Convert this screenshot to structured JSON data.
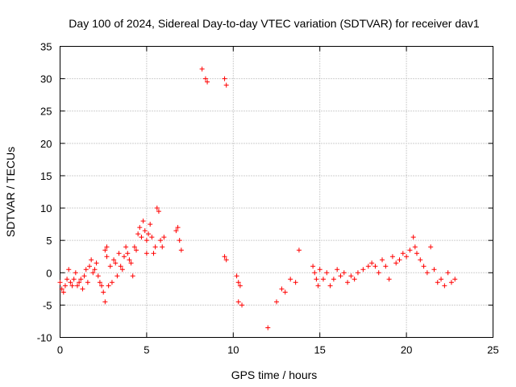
{
  "chart_data": {
    "type": "scatter",
    "title": "Day 100 of 2024, Sidereal Day-to-day VTEC variation (SDTVAR) for receiver dav1",
    "xlabel": "GPS time / hours",
    "ylabel": "SDTVAR / TECUs",
    "xlim": [
      0,
      25
    ],
    "ylim": [
      -10,
      35
    ],
    "xticks": [
      0,
      5,
      10,
      15,
      20,
      25
    ],
    "yticks": [
      -10,
      -5,
      0,
      5,
      10,
      15,
      20,
      25,
      30,
      35
    ],
    "grid": true,
    "marker": "+",
    "color": "#ff0000",
    "series": [
      {
        "name": "SDTVAR",
        "x": [
          0.0,
          0.1,
          0.2,
          0.3,
          0.4,
          0.5,
          0.6,
          0.7,
          0.8,
          0.9,
          1.0,
          1.1,
          1.2,
          1.3,
          1.4,
          1.5,
          1.6,
          1.7,
          1.8,
          1.9,
          2.0,
          2.1,
          2.2,
          2.3,
          2.4,
          2.5,
          2.6,
          2.6,
          2.7,
          2.7,
          2.8,
          2.9,
          3.0,
          3.1,
          3.2,
          3.3,
          3.4,
          3.5,
          3.6,
          3.7,
          3.8,
          3.9,
          4.0,
          4.1,
          4.2,
          4.3,
          4.4,
          4.5,
          4.6,
          4.7,
          4.8,
          4.9,
          5.0,
          5.0,
          5.1,
          5.2,
          5.3,
          5.4,
          5.5,
          5.6,
          5.7,
          5.8,
          5.9,
          6.0,
          6.7,
          6.8,
          6.9,
          7.0,
          8.2,
          8.4,
          8.5,
          9.5,
          9.6,
          9.5,
          9.6,
          10.2,
          10.3,
          10.4,
          10.3,
          10.5,
          12.0,
          12.5,
          12.8,
          13.0,
          13.3,
          13.6,
          13.8,
          14.6,
          14.7,
          14.8,
          14.9,
          15.0,
          15.2,
          15.4,
          15.6,
          15.8,
          16.0,
          16.2,
          16.4,
          16.6,
          16.8,
          17.0,
          17.2,
          17.5,
          17.8,
          18.0,
          18.2,
          18.4,
          18.6,
          18.8,
          19.0,
          19.2,
          19.4,
          19.6,
          19.8,
          20.0,
          20.2,
          20.4,
          20.5,
          20.6,
          20.8,
          21.0,
          21.2,
          21.4,
          21.6,
          21.8,
          22.0,
          22.2,
          22.4,
          22.6,
          22.8
        ],
        "y": [
          -1.5,
          -2.5,
          -3.0,
          -2.0,
          -1.0,
          0.5,
          -1.5,
          -2.0,
          -1.0,
          0.0,
          -2.0,
          -1.5,
          -1.0,
          -2.5,
          -0.5,
          0.5,
          -1.5,
          1.0,
          2.0,
          0.0,
          0.5,
          1.5,
          -0.5,
          -1.5,
          -2.0,
          -3.0,
          -4.5,
          3.5,
          4.0,
          2.5,
          -2.0,
          1.0,
          -1.5,
          2.0,
          1.5,
          -0.5,
          3.0,
          1.0,
          0.5,
          2.5,
          4.0,
          3.0,
          2.0,
          1.5,
          -0.5,
          4.0,
          3.5,
          6.0,
          7.0,
          5.5,
          8.0,
          6.5,
          5.0,
          3.0,
          6.0,
          7.5,
          5.5,
          3.0,
          4.0,
          10.0,
          9.5,
          5.0,
          4.0,
          5.5,
          6.5,
          7.0,
          5.0,
          3.5,
          31.5,
          30.0,
          29.5,
          30.0,
          29.0,
          2.5,
          2.0,
          -0.5,
          -1.5,
          -2.0,
          -4.5,
          -5.0,
          -8.5,
          -4.5,
          -2.5,
          -3.0,
          -1.0,
          -1.5,
          3.5,
          1.0,
          0.0,
          -1.0,
          -2.0,
          0.5,
          -1.0,
          0.0,
          -2.0,
          -1.0,
          0.5,
          -0.5,
          0.0,
          -1.5,
          -0.5,
          -1.0,
          0.0,
          0.5,
          1.0,
          1.5,
          1.0,
          0.0,
          2.0,
          1.0,
          -1.0,
          2.5,
          1.5,
          2.0,
          3.0,
          2.5,
          3.5,
          5.5,
          4.0,
          3.0,
          2.0,
          1.0,
          0.0,
          4.0,
          0.5,
          -1.5,
          -1.0,
          -2.0,
          0.0,
          -1.5,
          -1.0
        ]
      }
    ]
  }
}
